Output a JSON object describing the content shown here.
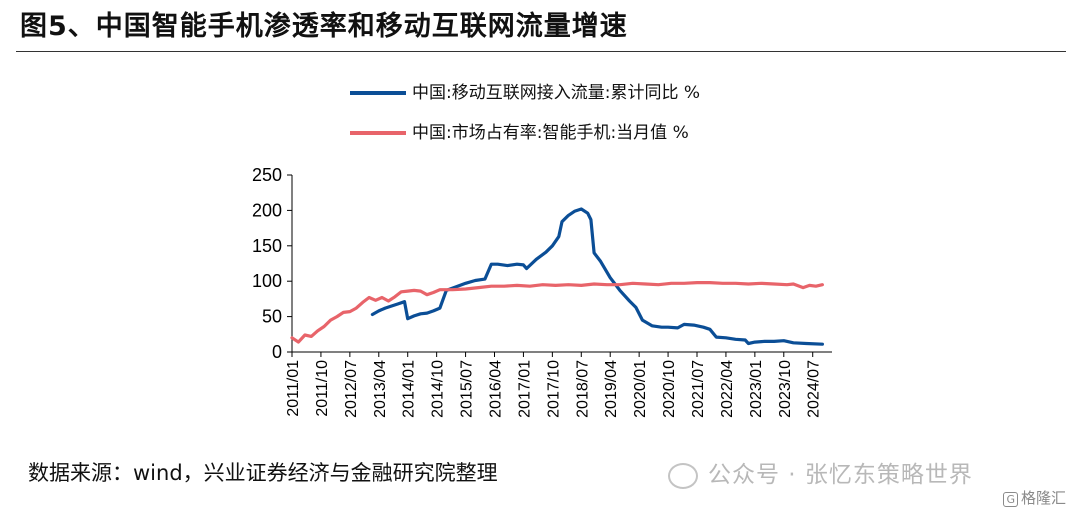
{
  "title": "图5、中国智能手机渗透率和移动互联网流量增速",
  "source": "数据来源：wind，兴业证券经济与金融研究院整理",
  "watermark": "公众号 · 张忆东策略世界",
  "corner_logo": "格隆汇",
  "corner_logo_badge": "G",
  "colors": {
    "series1": "#0b4e96",
    "series2": "#e8646a",
    "axis": "#000000"
  },
  "chart_data": {
    "type": "line",
    "ylim": [
      0,
      250
    ],
    "yticks": [
      0,
      50,
      100,
      150,
      200,
      250
    ],
    "x_range": [
      "2011-01",
      "2025-01"
    ],
    "xticks": [
      "2011/01",
      "2011/10",
      "2012/07",
      "2013/04",
      "2014/01",
      "2014/10",
      "2015/07",
      "2016/04",
      "2017/01",
      "2017/10",
      "2018/07",
      "2019/04",
      "2020/01",
      "2020/10",
      "2021/07",
      "2022/04",
      "2023/01",
      "2023/10",
      "2024/07"
    ],
    "grid": false,
    "legend_position": "top",
    "series": [
      {
        "name": "中国:移动互联网接入流量:累计同比 %",
        "color": "#0b4e96",
        "points": [
          [
            "2013-02",
            53
          ],
          [
            "2013-04",
            58
          ],
          [
            "2013-06",
            62
          ],
          [
            "2013-08",
            65
          ],
          [
            "2013-10",
            68
          ],
          [
            "2013-12",
            71
          ],
          [
            "2014-01",
            47
          ],
          [
            "2014-03",
            51
          ],
          [
            "2014-05",
            54
          ],
          [
            "2014-07",
            55
          ],
          [
            "2014-09",
            58
          ],
          [
            "2014-11",
            62
          ],
          [
            "2015-01",
            87
          ],
          [
            "2015-04",
            92
          ],
          [
            "2015-07",
            97
          ],
          [
            "2015-10",
            101
          ],
          [
            "2016-01",
            103
          ],
          [
            "2016-03",
            124
          ],
          [
            "2016-05",
            124
          ],
          [
            "2016-08",
            122
          ],
          [
            "2016-11",
            124
          ],
          [
            "2017-01",
            123
          ],
          [
            "2017-02",
            118
          ],
          [
            "2017-05",
            131
          ],
          [
            "2017-08",
            141
          ],
          [
            "2017-10",
            150
          ],
          [
            "2017-12",
            163
          ],
          [
            "2018-01",
            184
          ],
          [
            "2018-03",
            193
          ],
          [
            "2018-05",
            199
          ],
          [
            "2018-07",
            202
          ],
          [
            "2018-09",
            196
          ],
          [
            "2018-10",
            187
          ],
          [
            "2018-11",
            140
          ],
          [
            "2019-01",
            128
          ],
          [
            "2019-04",
            105
          ],
          [
            "2019-07",
            87
          ],
          [
            "2019-10",
            72
          ],
          [
            "2019-12",
            63
          ],
          [
            "2020-02",
            45
          ],
          [
            "2020-05",
            37
          ],
          [
            "2020-08",
            35
          ],
          [
            "2020-10",
            35
          ],
          [
            "2021-01",
            34
          ],
          [
            "2021-03",
            39
          ],
          [
            "2021-06",
            38
          ],
          [
            "2021-09",
            35
          ],
          [
            "2021-11",
            32
          ],
          [
            "2022-01",
            21
          ],
          [
            "2022-04",
            20
          ],
          [
            "2022-07",
            18
          ],
          [
            "2022-10",
            17
          ],
          [
            "2022-11",
            12
          ],
          [
            "2023-01",
            14
          ],
          [
            "2023-04",
            15
          ],
          [
            "2023-07",
            15
          ],
          [
            "2023-10",
            16
          ],
          [
            "2024-01",
            13
          ],
          [
            "2024-05",
            12
          ],
          [
            "2024-10",
            11
          ]
        ]
      },
      {
        "name": "中国:市场占有率:智能手机:当月值 %",
        "color": "#e8646a",
        "points": [
          [
            "2011-01",
            20
          ],
          [
            "2011-03",
            14
          ],
          [
            "2011-05",
            24
          ],
          [
            "2011-07",
            22
          ],
          [
            "2011-09",
            30
          ],
          [
            "2011-11",
            36
          ],
          [
            "2012-01",
            45
          ],
          [
            "2012-03",
            50
          ],
          [
            "2012-05",
            56
          ],
          [
            "2012-07",
            57
          ],
          [
            "2012-09",
            62
          ],
          [
            "2012-11",
            70
          ],
          [
            "2013-01",
            77
          ],
          [
            "2013-03",
            73
          ],
          [
            "2013-05",
            77
          ],
          [
            "2013-07",
            72
          ],
          [
            "2013-09",
            78
          ],
          [
            "2013-11",
            85
          ],
          [
            "2014-01",
            86
          ],
          [
            "2014-03",
            87
          ],
          [
            "2014-05",
            86
          ],
          [
            "2014-07",
            81
          ],
          [
            "2014-09",
            84
          ],
          [
            "2014-11",
            88
          ],
          [
            "2015-03",
            88
          ],
          [
            "2015-07",
            89
          ],
          [
            "2015-11",
            91
          ],
          [
            "2016-03",
            93
          ],
          [
            "2016-07",
            93
          ],
          [
            "2016-11",
            94
          ],
          [
            "2017-03",
            93
          ],
          [
            "2017-07",
            95
          ],
          [
            "2017-11",
            94
          ],
          [
            "2018-03",
            95
          ],
          [
            "2018-07",
            94
          ],
          [
            "2018-11",
            96
          ],
          [
            "2019-03",
            95
          ],
          [
            "2019-07",
            95
          ],
          [
            "2019-11",
            97
          ],
          [
            "2020-03",
            96
          ],
          [
            "2020-07",
            95
          ],
          [
            "2020-11",
            97
          ],
          [
            "2021-03",
            97
          ],
          [
            "2021-07",
            98
          ],
          [
            "2021-11",
            98
          ],
          [
            "2022-03",
            97
          ],
          [
            "2022-07",
            97
          ],
          [
            "2022-11",
            96
          ],
          [
            "2023-03",
            97
          ],
          [
            "2023-07",
            96
          ],
          [
            "2023-11",
            95
          ],
          [
            "2024-01",
            96
          ],
          [
            "2024-04",
            91
          ],
          [
            "2024-06",
            94
          ],
          [
            "2024-08",
            93
          ],
          [
            "2024-10",
            95
          ]
        ]
      }
    ]
  }
}
